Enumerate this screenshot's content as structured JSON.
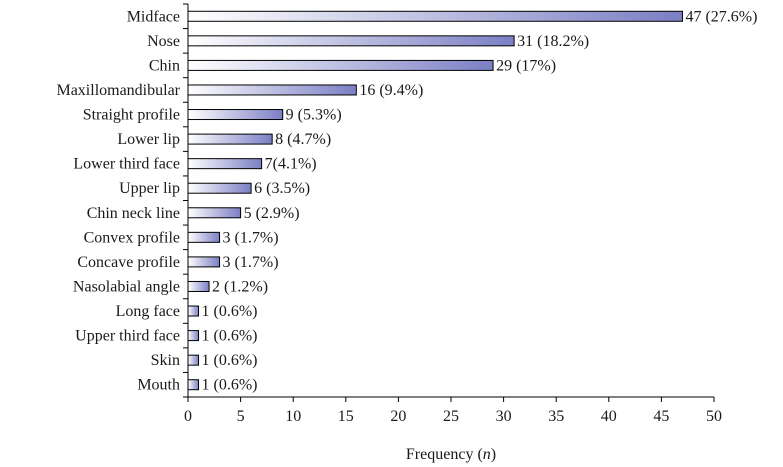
{
  "colors": {
    "bar_start": "#ffffff",
    "bar_end": "#7b7fc4",
    "bar_stroke": "#000000",
    "text": "#1a1a1a"
  },
  "chart_data": {
    "type": "bar",
    "orientation": "horizontal",
    "title": "",
    "xlabel_text": "Frequency (",
    "xlabel_italic": "n",
    "xlabel_close": ")",
    "ylabel": "",
    "xlim": [
      0,
      50
    ],
    "xticks": [
      0,
      5,
      10,
      15,
      20,
      25,
      30,
      35,
      40,
      45,
      50
    ],
    "grid": false,
    "legend": "none",
    "categories": [
      "Midface",
      "Nose",
      "Chin",
      "Maxillomandibular",
      "Straight profile",
      "Lower lip",
      "Lower third face",
      "Upper lip",
      "Chin neck line",
      "Convex profile",
      "Concave profile",
      "Nasolabial angle",
      "Long face",
      "Upper third face",
      "Skin",
      "Mouth"
    ],
    "values": [
      47,
      31,
      29,
      16,
      9,
      8,
      7,
      6,
      5,
      3,
      3,
      2,
      1,
      1,
      1,
      1
    ],
    "value_labels": [
      "47 (27.6%)",
      "31 (18.2%)",
      "29 (17%)",
      "16 (9.4%)",
      "9 (5.3%)",
      "8 (4.7%)",
      "7(4.1%)",
      "6 (3.5%)",
      "5 (2.9%)",
      "3 (1.7%)",
      "3 (1.7%)",
      "2 (1.2%)",
      "1 (0.6%)",
      "1 (0.6%)",
      "1 (0.6%)",
      "1 (0.6%)"
    ]
  }
}
